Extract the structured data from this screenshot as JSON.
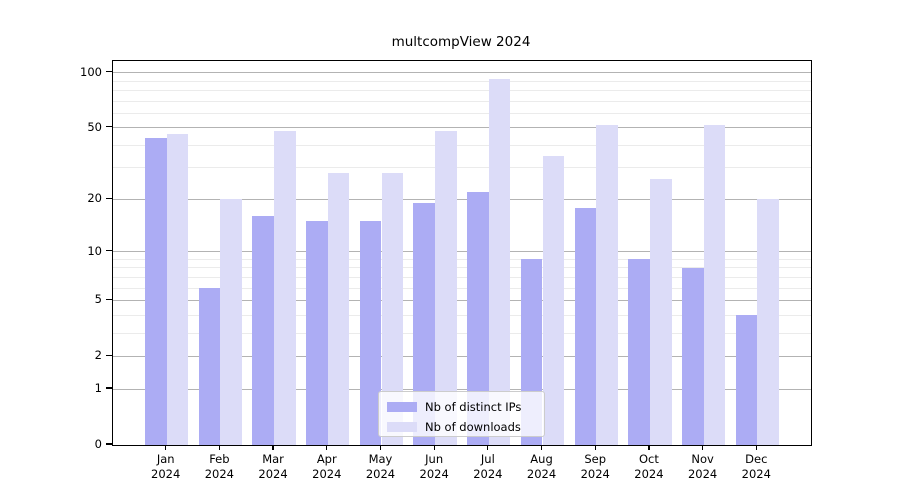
{
  "chart_data": {
    "type": "bar",
    "title": "multcompView 2024",
    "categories": [
      "Jan",
      "Feb",
      "Mar",
      "Apr",
      "May",
      "Jun",
      "Jul",
      "Aug",
      "Sep",
      "Oct",
      "Nov",
      "Dec"
    ],
    "category_year_label": "2024",
    "series": [
      {
        "name": "Nb of distinct IPs",
        "color": "#acacf4",
        "values": [
          44,
          6,
          16,
          15,
          15,
          19,
          22,
          9,
          18,
          9,
          8,
          4
        ]
      },
      {
        "name": "Nb of downloads",
        "color": "#dcdcf8",
        "values": [
          46,
          20,
          48,
          28,
          28,
          48,
          93,
          35,
          52,
          26,
          52,
          20
        ]
      }
    ],
    "xlabel": "",
    "ylabel": "",
    "y_axis": {
      "scale": "log1p",
      "tick_values": [
        0,
        1,
        2,
        5,
        10,
        20,
        50,
        100
      ],
      "minor_gridline_values": [
        3,
        4,
        6,
        7,
        8,
        9,
        30,
        40,
        60,
        70,
        80,
        90
      ],
      "ylim": [
        0,
        116
      ]
    },
    "grid": true,
    "legend": {
      "position": "lower center"
    },
    "colors": {
      "major_grid": "#b3b3b3",
      "minor_grid": "#ebebeb",
      "spine": "#000000",
      "legend_border": "#cccccc",
      "background": "#ffffff"
    }
  }
}
